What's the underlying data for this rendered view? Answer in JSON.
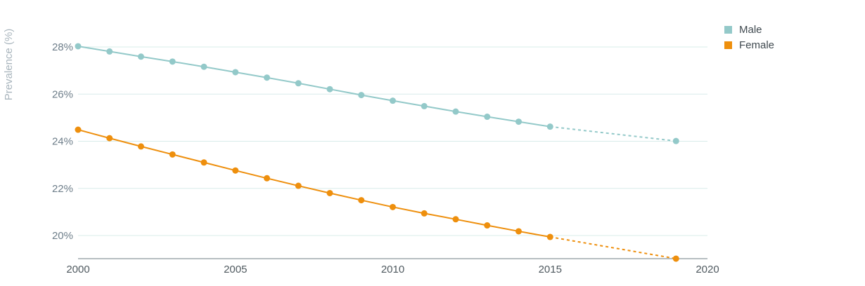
{
  "chart_data": {
    "type": "line",
    "title": "",
    "xlabel": "",
    "ylabel": "Prevalence (%)",
    "xlim": [
      2000,
      2020
    ],
    "ylim": [
      19,
      29
    ],
    "xticks": [
      2000,
      2005,
      2010,
      2015,
      2020
    ],
    "xtick_labels": [
      "2000",
      "2005",
      "2010",
      "2015",
      "2020"
    ],
    "yticks": [
      20,
      22,
      24,
      26,
      28
    ],
    "ytick_labels": [
      "20%",
      "22%",
      "24%",
      "26%",
      "28%"
    ],
    "grid": "horizontal",
    "legend": "top-right",
    "projection_note_style": "dashed",
    "series": [
      {
        "name": "Male",
        "color": "#93c9c9",
        "points": [
          {
            "x": 2000,
            "y": 28.03
          },
          {
            "x": 2001,
            "y": 27.81
          },
          {
            "x": 2002,
            "y": 27.59
          },
          {
            "x": 2003,
            "y": 27.38
          },
          {
            "x": 2004,
            "y": 27.16
          },
          {
            "x": 2005,
            "y": 26.93
          },
          {
            "x": 2006,
            "y": 26.7
          },
          {
            "x": 2007,
            "y": 26.46
          },
          {
            "x": 2008,
            "y": 26.21
          },
          {
            "x": 2009,
            "y": 25.96
          },
          {
            "x": 2010,
            "y": 25.72
          },
          {
            "x": 2011,
            "y": 25.49
          },
          {
            "x": 2012,
            "y": 25.26
          },
          {
            "x": 2013,
            "y": 25.04
          },
          {
            "x": 2014,
            "y": 24.83
          },
          {
            "x": 2015,
            "y": 24.62
          }
        ],
        "projection": [
          {
            "x": 2015,
            "y": 24.62
          },
          {
            "x": 2019,
            "y": 24.01
          }
        ]
      },
      {
        "name": "Female",
        "color": "#ee8f0d",
        "points": [
          {
            "x": 2000,
            "y": 24.49
          },
          {
            "x": 2001,
            "y": 24.13
          },
          {
            "x": 2002,
            "y": 23.78
          },
          {
            "x": 2003,
            "y": 23.44
          },
          {
            "x": 2004,
            "y": 23.1
          },
          {
            "x": 2005,
            "y": 22.76
          },
          {
            "x": 2006,
            "y": 22.43
          },
          {
            "x": 2007,
            "y": 22.11
          },
          {
            "x": 2008,
            "y": 21.8
          },
          {
            "x": 2009,
            "y": 21.5
          },
          {
            "x": 2010,
            "y": 21.21
          },
          {
            "x": 2011,
            "y": 20.94
          },
          {
            "x": 2012,
            "y": 20.69
          },
          {
            "x": 2013,
            "y": 20.43
          },
          {
            "x": 2014,
            "y": 20.18
          },
          {
            "x": 2015,
            "y": 19.94
          }
        ],
        "projection": [
          {
            "x": 2015,
            "y": 19.94
          },
          {
            "x": 2019,
            "y": 19.02
          }
        ]
      }
    ]
  },
  "style": {
    "grid_color": "#d8ecea",
    "axis_color": "#8a969c"
  }
}
